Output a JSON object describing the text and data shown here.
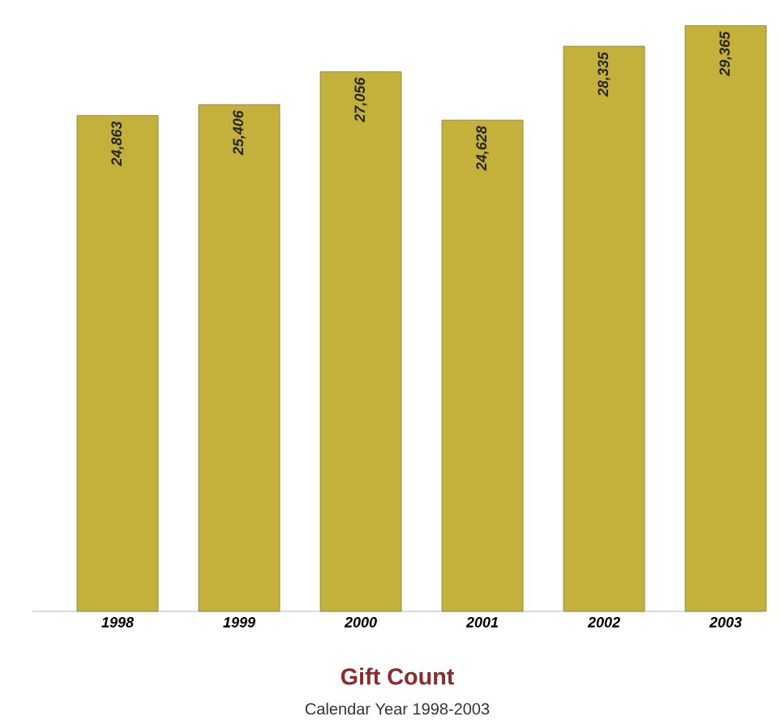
{
  "chart_data": {
    "type": "bar",
    "title": "Gift Count",
    "subtitle": "Calendar Year 1998-2003",
    "categories": [
      "1998",
      "1999",
      "2000",
      "2001",
      "2002",
      "2003"
    ],
    "values": [
      24863,
      25406,
      27056,
      24628,
      28335,
      29365
    ],
    "value_labels": [
      "24,863",
      "25,406",
      "27,056",
      "24,628",
      "28,335",
      "29,365"
    ],
    "color": "#c4b13c"
  }
}
